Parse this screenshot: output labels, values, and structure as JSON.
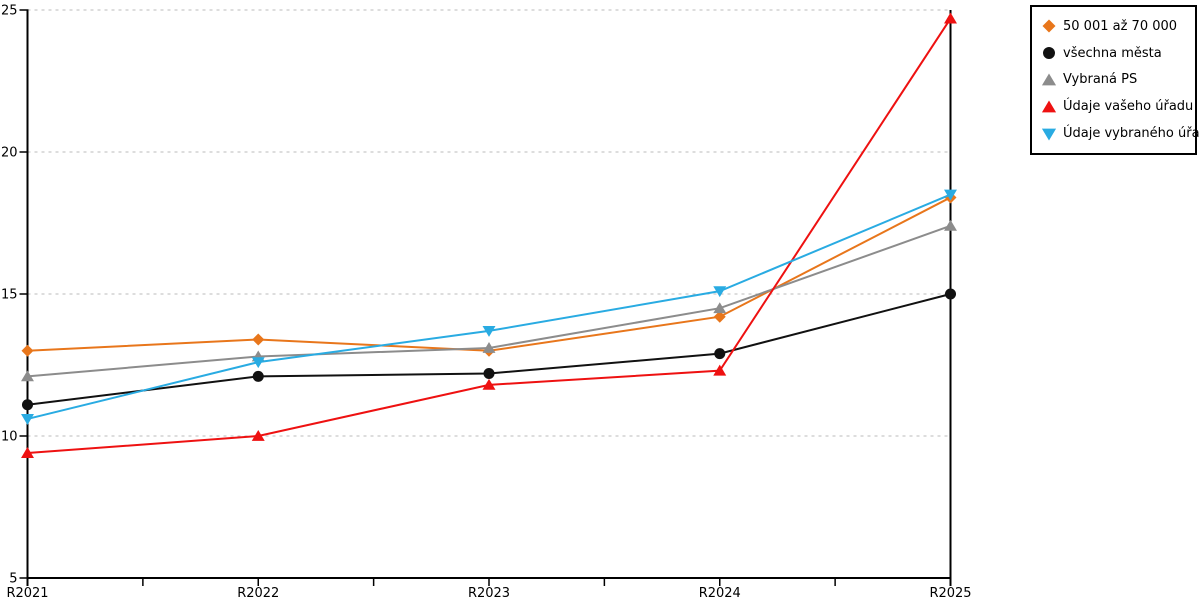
{
  "chart_data": {
    "type": "line",
    "title": "",
    "xlabel": "",
    "ylabel": "",
    "categories": [
      "R2021",
      "R2022",
      "R2023",
      "R2024",
      "R2025"
    ],
    "series": [
      {
        "name": "50 001 až 70 000",
        "marker": "diamond",
        "color": "#E8761B",
        "values": [
          13.0,
          13.4,
          13.0,
          14.2,
          18.4
        ]
      },
      {
        "name": "všechna města",
        "marker": "circle",
        "color": "#111111",
        "values": [
          11.1,
          12.1,
          12.2,
          12.9,
          15.0
        ]
      },
      {
        "name": "Vybraná PS",
        "marker": "triangle-up",
        "color": "#8C8C8C",
        "values": [
          12.1,
          12.8,
          13.1,
          14.5,
          17.4
        ]
      },
      {
        "name": "Údaje vašeho úřadu",
        "marker": "triangle-up",
        "color": "#EE1111",
        "values": [
          9.4,
          10.0,
          11.8,
          12.3,
          24.7
        ]
      },
      {
        "name": "Údaje vybraného úřadu",
        "marker": "triangle-down",
        "color": "#29ABE2",
        "values": [
          10.6,
          12.6,
          13.7,
          15.1,
          18.5
        ]
      }
    ],
    "ylim": [
      5,
      25
    ],
    "y_ticks": [
      5,
      10,
      15,
      20,
      25
    ],
    "grid": "horizontal-dashed",
    "gridline_color": "#BBBBBB",
    "axis_color": "#000000",
    "legend_position": "top-right",
    "legend_border_color": "#000000"
  }
}
